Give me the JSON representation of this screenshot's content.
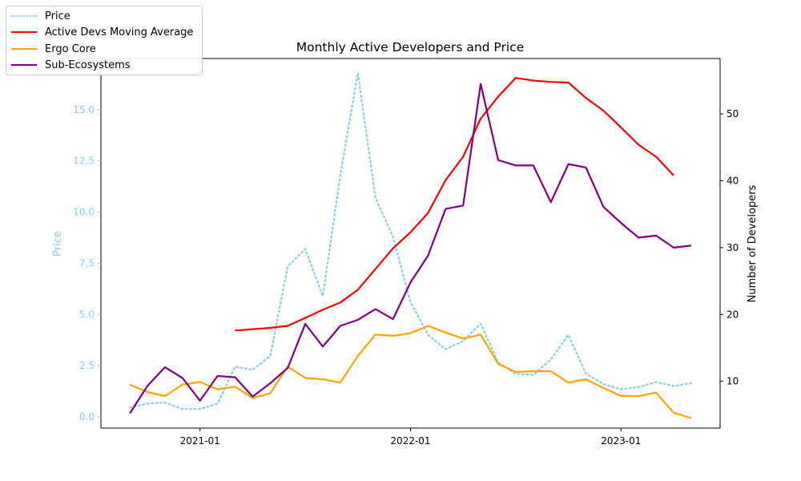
{
  "chart_data": {
    "type": "line",
    "title": "Monthly Active Developers and Price",
    "xlabel": "",
    "ylabel_left": "Price",
    "ylabel_right": "Number of Developers",
    "x_ticks": [
      "2021-01",
      "2022-01",
      "2023-01"
    ],
    "y_left_ticks": [
      "0.0",
      "2.5",
      "5.0",
      "7.5",
      "10.0",
      "12.5",
      "15.0"
    ],
    "y_right_ticks": [
      "10",
      "20",
      "30",
      "40",
      "50"
    ],
    "ylim_left": [
      -0.55,
      17.5
    ],
    "ylim_right": [
      3,
      58.3
    ],
    "grid": false,
    "legend_placement": "upper-left outside",
    "x": [
      "2020-09",
      "2020-10",
      "2020-11",
      "2020-12",
      "2021-01",
      "2021-02",
      "2021-03",
      "2021-04",
      "2021-05",
      "2021-06",
      "2021-07",
      "2021-08",
      "2021-09",
      "2021-10",
      "2021-11",
      "2021-12",
      "2022-01",
      "2022-02",
      "2022-03",
      "2022-04",
      "2022-05",
      "2022-06",
      "2022-07",
      "2022-08",
      "2022-09",
      "2022-10",
      "2022-11",
      "2022-12",
      "2023-01",
      "2023-02",
      "2023-03",
      "2023-04",
      "2023-05"
    ],
    "series": [
      {
        "name": "Price",
        "axis": "left",
        "color": "#87ceeb",
        "style": "dotted",
        "values": [
          0.45,
          0.65,
          0.7,
          0.38,
          0.38,
          0.65,
          2.45,
          2.3,
          2.95,
          7.35,
          8.2,
          5.9,
          11.8,
          16.8,
          10.7,
          8.8,
          5.6,
          4.0,
          3.3,
          3.7,
          4.55,
          2.65,
          2.1,
          2.05,
          2.8,
          4.0,
          2.1,
          1.6,
          1.35,
          1.45,
          1.7,
          1.5,
          1.65
        ]
      },
      {
        "name": "Active Devs Moving Average",
        "axis": "right",
        "color": "#ff0000",
        "style": "solid",
        "values": [
          null,
          null,
          null,
          null,
          null,
          null,
          17.6,
          17.8,
          18.0,
          18.3,
          19.5,
          20.7,
          21.8,
          23.7,
          26.8,
          29.9,
          32.3,
          35.2,
          40.1,
          43.6,
          49.3,
          52.6,
          55.4,
          55.0,
          54.8,
          54.7,
          52.4,
          50.5,
          48.0,
          45.4,
          43.6,
          40.8,
          null
        ]
      },
      {
        "name": "Ergo Core",
        "axis": "right",
        "color": "#ffa500",
        "style": "solid",
        "values": [
          9.5,
          8.4,
          7.8,
          9.5,
          9.9,
          8.8,
          9.2,
          7.5,
          8.2,
          12.2,
          10.5,
          10.3,
          9.8,
          13.8,
          17.0,
          16.8,
          17.2,
          18.3,
          17.3,
          16.4,
          17.0,
          12.6,
          11.4,
          11.5,
          11.5,
          9.8,
          10.3,
          9.0,
          7.8,
          7.8,
          8.3,
          5.3,
          4.5
        ]
      },
      {
        "name": "Sub-Ecosystems",
        "axis": "right",
        "color": "#800080",
        "style": "solid",
        "values": [
          5.2,
          9.3,
          12.1,
          10.5,
          7.1,
          10.8,
          10.6,
          7.7,
          9.7,
          12.0,
          18.6,
          15.2,
          18.3,
          19.2,
          20.8,
          19.3,
          24.8,
          28.8,
          35.8,
          36.3,
          54.5,
          43.1,
          42.3,
          42.3,
          36.8,
          42.5,
          42.0,
          36.1,
          33.7,
          31.5,
          31.8,
          30.0,
          30.3
        ]
      }
    ]
  }
}
